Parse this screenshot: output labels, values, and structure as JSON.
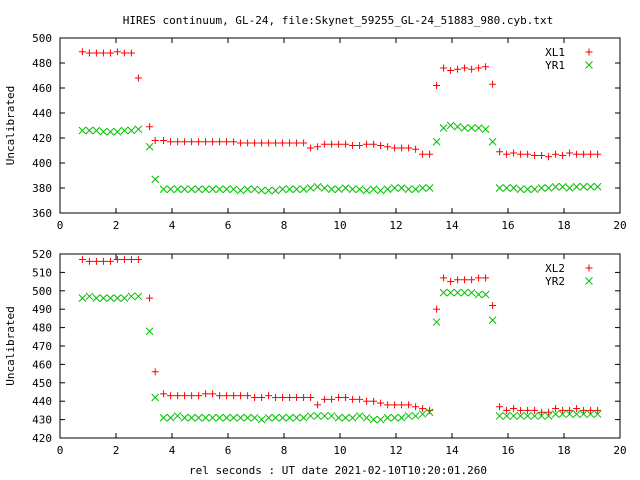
{
  "title": "HIRES continuum, GL-24, file:Skynet_59255_GL-24_51883_980.cyb.txt",
  "xlabel": "rel seconds : UT date 2021-02-10T10:20:01.260",
  "colors": {
    "red": "#ff0000",
    "green": "#00c000",
    "axis": "#000000"
  },
  "chart_data": [
    {
      "type": "scatter",
      "ylabel": "Uncalibrated",
      "xlim": [
        0,
        20
      ],
      "ylim": [
        360,
        500
      ],
      "xticks": [
        0,
        2,
        4,
        6,
        8,
        10,
        12,
        14,
        16,
        18,
        20
      ],
      "yticks": [
        360,
        380,
        400,
        420,
        440,
        460,
        480,
        500
      ],
      "legend_position": "top-right",
      "series": [
        {
          "name": "XL1",
          "marker": "plus",
          "color": "#ff0000",
          "x": [
            0.8,
            1.05,
            1.3,
            1.55,
            1.8,
            2.05,
            2.3,
            2.55,
            2.8,
            3.2,
            3.4,
            3.7,
            3.95,
            4.2,
            4.45,
            4.7,
            4.95,
            5.2,
            5.45,
            5.7,
            5.95,
            6.2,
            6.45,
            6.7,
            6.95,
            7.2,
            7.45,
            7.7,
            7.95,
            8.2,
            8.45,
            8.7,
            8.95,
            9.2,
            9.45,
            9.7,
            9.95,
            10.2,
            10.45,
            10.7,
            10.95,
            11.2,
            11.45,
            11.7,
            11.95,
            12.2,
            12.45,
            12.7,
            12.95,
            13.2,
            13.45,
            13.7,
            13.95,
            14.2,
            14.45,
            14.7,
            14.95,
            15.2,
            15.45,
            15.7,
            15.95,
            16.2,
            16.45,
            16.7,
            16.95,
            17.2,
            17.45,
            17.7,
            17.95,
            18.2,
            18.45,
            18.7,
            18.95,
            19.2
          ],
          "y": [
            489,
            488,
            488,
            488,
            488,
            489,
            488,
            488,
            468,
            429,
            418,
            418,
            417,
            417,
            417,
            417,
            417,
            417,
            417,
            417,
            417,
            417,
            416,
            416,
            416,
            416,
            416,
            416,
            416,
            416,
            416,
            416,
            412,
            413,
            415,
            415,
            415,
            415,
            414,
            414,
            415,
            415,
            414,
            413,
            412,
            412,
            412,
            411,
            407,
            407,
            462,
            476,
            474,
            475,
            476,
            475,
            476,
            477,
            463,
            409,
            407,
            408,
            407,
            407,
            406,
            406,
            405,
            407,
            406,
            408,
            407,
            407,
            407,
            407
          ]
        },
        {
          "name": "YR1",
          "marker": "cross",
          "color": "#00c000",
          "x": [
            0.8,
            1.05,
            1.3,
            1.55,
            1.8,
            2.05,
            2.3,
            2.55,
            2.8,
            3.2,
            3.4,
            3.7,
            3.95,
            4.2,
            4.45,
            4.7,
            4.95,
            5.2,
            5.45,
            5.7,
            5.95,
            6.2,
            6.45,
            6.7,
            6.95,
            7.2,
            7.45,
            7.7,
            7.95,
            8.2,
            8.45,
            8.7,
            8.95,
            9.2,
            9.45,
            9.7,
            9.95,
            10.2,
            10.45,
            10.7,
            10.95,
            11.2,
            11.45,
            11.7,
            11.95,
            12.2,
            12.45,
            12.7,
            12.95,
            13.2,
            13.45,
            13.7,
            13.95,
            14.2,
            14.45,
            14.7,
            14.95,
            15.2,
            15.45,
            15.7,
            15.95,
            16.2,
            16.45,
            16.7,
            16.95,
            17.2,
            17.45,
            17.7,
            17.95,
            18.2,
            18.45,
            18.7,
            18.95,
            19.2
          ],
          "y": [
            426,
            426,
            426,
            425,
            425,
            425,
            426,
            426,
            427,
            413,
            387,
            379,
            379,
            379,
            379,
            379,
            379,
            379,
            379,
            379,
            379,
            379,
            378,
            379,
            379,
            378,
            378,
            378,
            379,
            379,
            379,
            379,
            380,
            381,
            380,
            379,
            379,
            380,
            379,
            379,
            378,
            379,
            378,
            379,
            380,
            380,
            379,
            379,
            380,
            380,
            417,
            428,
            430,
            429,
            428,
            428,
            428,
            427,
            417,
            380,
            380,
            380,
            379,
            379,
            379,
            380,
            380,
            381,
            381,
            380,
            381,
            381,
            381,
            381
          ]
        }
      ]
    },
    {
      "type": "scatter",
      "ylabel": "Uncalibrated",
      "xlim": [
        0,
        20
      ],
      "ylim": [
        420,
        520
      ],
      "xticks": [
        0,
        2,
        4,
        6,
        8,
        10,
        12,
        14,
        16,
        18,
        20
      ],
      "yticks": [
        420,
        430,
        440,
        450,
        460,
        470,
        480,
        490,
        500,
        510,
        520
      ],
      "legend_position": "top-right",
      "series": [
        {
          "name": "XL2",
          "marker": "plus",
          "color": "#ff0000",
          "x": [
            0.8,
            1.05,
            1.3,
            1.55,
            1.8,
            2.05,
            2.3,
            2.55,
            2.8,
            3.2,
            3.4,
            3.7,
            3.95,
            4.2,
            4.45,
            4.7,
            4.95,
            5.2,
            5.45,
            5.7,
            5.95,
            6.2,
            6.45,
            6.7,
            6.95,
            7.2,
            7.45,
            7.7,
            7.95,
            8.2,
            8.45,
            8.7,
            8.95,
            9.2,
            9.45,
            9.7,
            9.95,
            10.2,
            10.45,
            10.7,
            10.95,
            11.2,
            11.45,
            11.7,
            11.95,
            12.2,
            12.45,
            12.7,
            12.95,
            13.2,
            13.45,
            13.7,
            13.95,
            14.2,
            14.45,
            14.7,
            14.95,
            15.2,
            15.45,
            15.7,
            15.95,
            16.2,
            16.45,
            16.7,
            16.95,
            17.2,
            17.45,
            17.7,
            17.95,
            18.2,
            18.45,
            18.7,
            18.95,
            19.2
          ],
          "y": [
            517,
            516,
            516,
            516,
            516,
            517,
            517,
            517,
            517,
            496,
            456,
            444,
            443,
            443,
            443,
            443,
            443,
            444,
            444,
            443,
            443,
            443,
            443,
            443,
            442,
            442,
            443,
            442,
            442,
            442,
            442,
            442,
            442,
            438,
            441,
            441,
            442,
            442,
            441,
            441,
            440,
            440,
            439,
            438,
            438,
            438,
            438,
            437,
            436,
            435,
            490,
            507,
            505,
            506,
            506,
            506,
            507,
            507,
            492,
            437,
            435,
            436,
            435,
            435,
            435,
            434,
            434,
            436,
            435,
            435,
            436,
            435,
            435,
            435
          ]
        },
        {
          "name": "YR2",
          "marker": "cross",
          "color": "#00c000",
          "x": [
            0.8,
            1.05,
            1.3,
            1.55,
            1.8,
            2.05,
            2.3,
            2.55,
            2.8,
            3.2,
            3.4,
            3.7,
            3.95,
            4.2,
            4.45,
            4.7,
            4.95,
            5.2,
            5.45,
            5.7,
            5.95,
            6.2,
            6.45,
            6.7,
            6.95,
            7.2,
            7.45,
            7.7,
            7.95,
            8.2,
            8.45,
            8.7,
            8.95,
            9.2,
            9.45,
            9.7,
            9.95,
            10.2,
            10.45,
            10.7,
            10.95,
            11.2,
            11.45,
            11.7,
            11.95,
            12.2,
            12.45,
            12.7,
            12.95,
            13.2,
            13.45,
            13.7,
            13.95,
            14.2,
            14.45,
            14.7,
            14.95,
            15.2,
            15.45,
            15.7,
            15.95,
            16.2,
            16.45,
            16.7,
            16.95,
            17.2,
            17.45,
            17.7,
            17.95,
            18.2,
            18.45,
            18.7,
            18.95,
            19.2
          ],
          "y": [
            496,
            497,
            496,
            496,
            496,
            496,
            496,
            497,
            497,
            478,
            442,
            431,
            431,
            432,
            431,
            431,
            431,
            431,
            431,
            431,
            431,
            431,
            431,
            431,
            431,
            430,
            431,
            431,
            431,
            431,
            431,
            431,
            432,
            432,
            432,
            432,
            431,
            431,
            431,
            432,
            431,
            430,
            430,
            431,
            431,
            431,
            432,
            432,
            433,
            434,
            483,
            499,
            499,
            499,
            499,
            499,
            498,
            498,
            484,
            432,
            432,
            432,
            432,
            432,
            432,
            432,
            432,
            433,
            433,
            433,
            433,
            433,
            433,
            433
          ]
        }
      ]
    }
  ]
}
